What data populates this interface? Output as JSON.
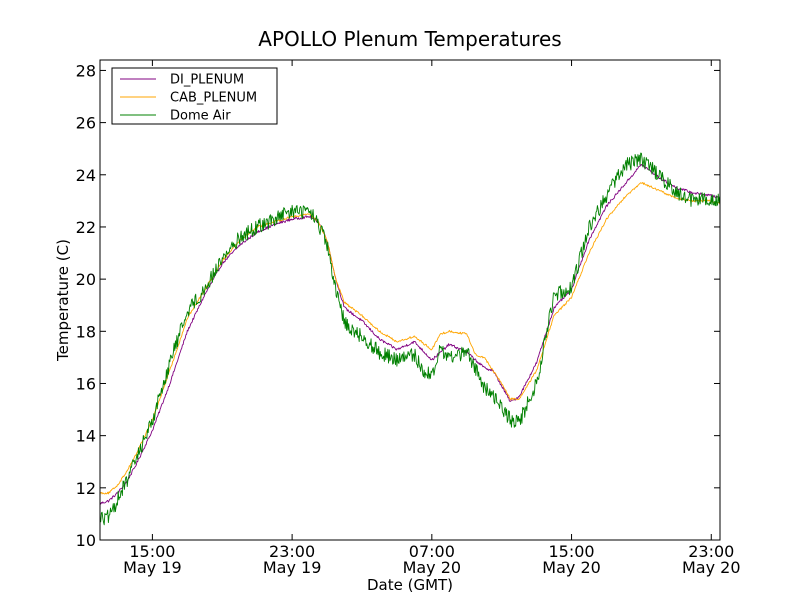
{
  "chart_data": {
    "type": "line",
    "title": "APOLLO Plenum Temperatures",
    "xlabel": "Date (GMT)",
    "ylabel": "Temperature (C)",
    "x_unit": "hours since May 19 12:00 GMT",
    "xlim": [
      0,
      35.5
    ],
    "ylim": [
      10,
      28.4
    ],
    "grid": false,
    "legend_position": "top-left",
    "y_ticks": [
      10,
      12,
      14,
      16,
      18,
      20,
      22,
      24,
      26,
      28
    ],
    "x_ticks": [
      {
        "value": 3,
        "time": "15:00",
        "date": "May 19"
      },
      {
        "value": 11,
        "time": "23:00",
        "date": "May 19"
      },
      {
        "value": 19,
        "time": "07:00",
        "date": "May 20"
      },
      {
        "value": 27,
        "time": "15:00",
        "date": "May 20"
      },
      {
        "value": 35,
        "time": "23:00",
        "date": "May 20"
      }
    ],
    "series": [
      {
        "name": "DI_PLENUM",
        "color": "#800080",
        "noise": 0.05,
        "x": [
          0,
          0.5,
          1,
          1.5,
          2,
          3,
          4,
          5,
          6,
          7,
          8,
          9,
          10,
          11,
          12,
          12.5,
          13,
          13.5,
          14,
          15,
          16,
          17,
          18,
          19,
          20,
          21,
          22,
          22.5,
          23,
          23.5,
          24,
          25,
          26,
          27,
          28,
          29,
          30,
          31,
          32,
          33,
          34,
          35,
          35.5
        ],
        "y": [
          11.4,
          11.5,
          11.8,
          12.2,
          12.8,
          14.2,
          16.0,
          18.0,
          19.4,
          20.6,
          21.3,
          21.8,
          22.1,
          22.3,
          22.4,
          22.2,
          21.5,
          20.0,
          18.9,
          18.4,
          17.7,
          17.3,
          17.6,
          16.9,
          17.5,
          17.2,
          16.6,
          16.5,
          15.9,
          15.3,
          15.5,
          16.8,
          18.9,
          19.6,
          21.5,
          22.8,
          23.6,
          24.4,
          23.9,
          23.5,
          23.3,
          23.2,
          23.1
        ]
      },
      {
        "name": "CAB_PLENUM",
        "color": "#ffa500",
        "noise": 0.04,
        "x": [
          0,
          0.5,
          1,
          1.5,
          2,
          3,
          4,
          5,
          6,
          7,
          8,
          9,
          10,
          11,
          12,
          12.5,
          13,
          13.5,
          14,
          15,
          16,
          17,
          18,
          19,
          19.5,
          20,
          21,
          21.5,
          22,
          22.5,
          23,
          23.5,
          24,
          25,
          26,
          27,
          28,
          29,
          30,
          30.5,
          31,
          32,
          33,
          34,
          35,
          35.5
        ],
        "y": [
          11.8,
          11.8,
          12.1,
          12.6,
          13.2,
          14.6,
          16.5,
          18.5,
          19.6,
          20.7,
          21.5,
          22.0,
          22.2,
          22.4,
          22.5,
          22.2,
          21.5,
          20.0,
          19.1,
          18.6,
          18.0,
          17.6,
          17.8,
          17.3,
          17.9,
          18.0,
          17.9,
          17.1,
          17.0,
          16.5,
          16.0,
          15.4,
          15.4,
          16.5,
          18.6,
          19.3,
          21.0,
          22.3,
          23.1,
          23.4,
          23.7,
          23.4,
          23.1,
          23.0,
          23.0,
          22.9
        ]
      },
      {
        "name": "Dome Air",
        "color": "#008000",
        "noise": 0.28,
        "x": [
          0,
          0.3,
          0.7,
          1,
          1.5,
          2,
          3,
          4,
          5,
          6,
          7,
          8,
          9,
          10,
          11,
          12,
          12.5,
          13,
          13.5,
          14,
          14.5,
          15,
          16,
          17,
          18,
          18.5,
          19,
          19.5,
          20,
          21,
          21.5,
          22,
          22.5,
          23,
          23.5,
          24,
          25,
          26,
          27,
          28,
          29,
          30,
          30.5,
          31,
          32,
          33,
          34,
          35,
          35.5
        ],
        "y": [
          10.9,
          10.8,
          11.0,
          11.6,
          12.2,
          13.0,
          14.6,
          16.8,
          18.8,
          19.6,
          20.8,
          21.6,
          22.0,
          22.3,
          22.6,
          22.6,
          22.1,
          21.3,
          19.5,
          18.4,
          18.0,
          17.8,
          17.2,
          16.9,
          17.1,
          16.5,
          16.3,
          17.3,
          17.0,
          17.2,
          16.6,
          15.8,
          15.6,
          15.1,
          14.6,
          14.5,
          16.0,
          19.4,
          19.7,
          22.0,
          23.2,
          24.3,
          24.5,
          24.6,
          24.0,
          23.3,
          23.0,
          23.1,
          23.0
        ]
      }
    ]
  }
}
